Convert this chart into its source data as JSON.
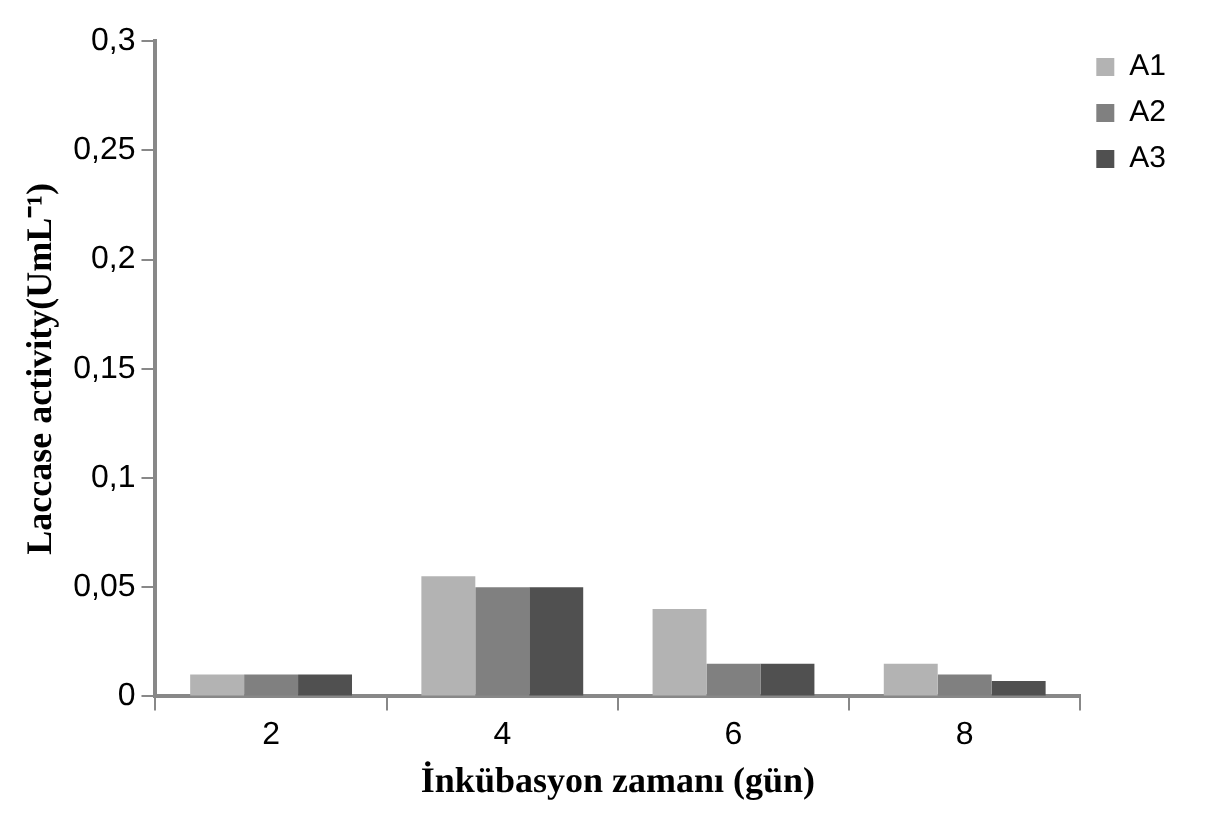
{
  "chart_data": {
    "type": "bar",
    "xlabel": "İnkübasyon zamanı (gün)",
    "ylabel": "Laccase activity(UmL⁻¹)",
    "categories": [
      "2",
      "4",
      "6",
      "8"
    ],
    "series": [
      {
        "name": "A1",
        "color": "#b3b3b3",
        "values": [
          0.01,
          0.055,
          0.04,
          0.015
        ]
      },
      {
        "name": "A2",
        "color": "#808080",
        "values": [
          0.01,
          0.05,
          0.015,
          0.01
        ]
      },
      {
        "name": "A3",
        "color": "#505050",
        "values": [
          0.01,
          0.05,
          0.015,
          0.007
        ]
      }
    ],
    "ylim": [
      0,
      0.3
    ],
    "yticks": [
      0,
      {
        "value": 0.05,
        "label": "0,05"
      },
      {
        "value": 0.1,
        "label": "0,1"
      },
      {
        "value": 0.15,
        "label": "0,15"
      },
      {
        "value": 0.2,
        "label": "0,2"
      },
      {
        "value": 0.25,
        "label": "0,25"
      },
      {
        "value": 0.3,
        "label": "0,3"
      }
    ],
    "grid": false,
    "legend": "right"
  }
}
